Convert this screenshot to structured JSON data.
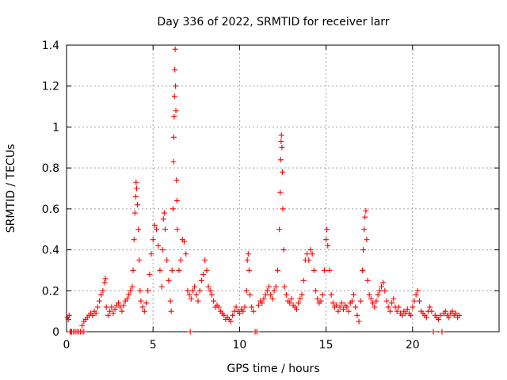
{
  "chart_data": {
    "type": "scatter",
    "title": "Day 336 of 2022, SRMTID for receiver larr",
    "xlabel": "GPS time / hours",
    "ylabel": "SRMTID / TECUs",
    "xlim": [
      0,
      25
    ],
    "ylim": [
      0,
      1.4
    ],
    "xticks": [
      0,
      5,
      10,
      15,
      20
    ],
    "xtick_labels": [
      "0",
      "5",
      "10",
      "15",
      "20"
    ],
    "yticks": [
      0,
      0.2,
      0.4,
      0.6,
      0.8,
      1.0,
      1.2,
      1.4
    ],
    "ytick_labels": [
      "0",
      "0.2",
      "0.4",
      "0.6",
      "0.8",
      "1",
      "1.2",
      "1.4"
    ],
    "grid": true,
    "marker": "plus",
    "color": "#ff0000",
    "series": [
      {
        "name": "SRMTID",
        "points": [
          [
            0.05,
            0.07
          ],
          [
            0.1,
            0.06
          ],
          [
            0.15,
            0.08
          ],
          [
            0.2,
            0.0
          ],
          [
            0.25,
            0.0
          ],
          [
            0.3,
            0.0
          ],
          [
            0.4,
            0.0
          ],
          [
            0.5,
            0.0
          ],
          [
            0.6,
            0.0
          ],
          [
            0.7,
            0.0
          ],
          [
            0.8,
            0.0
          ],
          [
            0.9,
            0.0
          ],
          [
            1.0,
            0.0
          ],
          [
            0.9,
            0.03
          ],
          [
            1.0,
            0.05
          ],
          [
            1.1,
            0.06
          ],
          [
            1.2,
            0.07
          ],
          [
            1.3,
            0.08
          ],
          [
            1.4,
            0.09
          ],
          [
            1.5,
            0.08
          ],
          [
            1.6,
            0.1
          ],
          [
            1.7,
            0.09
          ],
          [
            1.8,
            0.12
          ],
          [
            1.9,
            0.15
          ],
          [
            2.0,
            0.18
          ],
          [
            2.1,
            0.2
          ],
          [
            2.2,
            0.24
          ],
          [
            2.25,
            0.26
          ],
          [
            2.3,
            0.12
          ],
          [
            2.4,
            0.08
          ],
          [
            2.5,
            0.1
          ],
          [
            2.6,
            0.12
          ],
          [
            2.7,
            0.09
          ],
          [
            2.8,
            0.11
          ],
          [
            2.9,
            0.13
          ],
          [
            3.0,
            0.14
          ],
          [
            3.1,
            0.12
          ],
          [
            3.2,
            0.1
          ],
          [
            3.3,
            0.13
          ],
          [
            3.4,
            0.15
          ],
          [
            3.5,
            0.16
          ],
          [
            3.6,
            0.18
          ],
          [
            3.7,
            0.2
          ],
          [
            3.8,
            0.22
          ],
          [
            3.85,
            0.3
          ],
          [
            3.9,
            0.45
          ],
          [
            3.95,
            0.58
          ],
          [
            4.0,
            0.66
          ],
          [
            4.02,
            0.73
          ],
          [
            4.05,
            0.7
          ],
          [
            4.1,
            0.62
          ],
          [
            4.15,
            0.5
          ],
          [
            4.2,
            0.35
          ],
          [
            4.25,
            0.2
          ],
          [
            4.3,
            0.15
          ],
          [
            4.4,
            0.12
          ],
          [
            4.5,
            0.1
          ],
          [
            4.6,
            0.14
          ],
          [
            4.7,
            0.2
          ],
          [
            4.8,
            0.28
          ],
          [
            4.9,
            0.38
          ],
          [
            5.0,
            0.45
          ],
          [
            5.1,
            0.52
          ],
          [
            5.2,
            0.5
          ],
          [
            5.3,
            0.42
          ],
          [
            5.4,
            0.3
          ],
          [
            5.5,
            0.22
          ],
          [
            5.55,
            0.4
          ],
          [
            5.6,
            0.55
          ],
          [
            5.65,
            0.58
          ],
          [
            5.7,
            0.5
          ],
          [
            5.8,
            0.35
          ],
          [
            5.9,
            0.25
          ],
          [
            6.0,
            0.15
          ],
          [
            6.05,
            0.1
          ],
          [
            6.1,
            0.3
          ],
          [
            6.15,
            0.6
          ],
          [
            6.18,
            0.83
          ],
          [
            6.2,
            0.95
          ],
          [
            6.22,
            1.05
          ],
          [
            6.24,
            1.15
          ],
          [
            6.26,
            1.28
          ],
          [
            6.28,
            1.38
          ],
          [
            6.3,
            1.2
          ],
          [
            6.32,
            1.08
          ],
          [
            6.35,
            0.74
          ],
          [
            6.38,
            0.64
          ],
          [
            6.4,
            0.5
          ],
          [
            6.5,
            0.3
          ],
          [
            6.6,
            0.35
          ],
          [
            6.7,
            0.45
          ],
          [
            6.8,
            0.44
          ],
          [
            6.9,
            0.38
          ],
          [
            7.0,
            0.2
          ],
          [
            7.1,
            0.18
          ],
          [
            7.15,
            0.0
          ],
          [
            7.2,
            0.16
          ],
          [
            7.3,
            0.2
          ],
          [
            7.4,
            0.22
          ],
          [
            7.5,
            0.18
          ],
          [
            7.6,
            0.15
          ],
          [
            7.7,
            0.2
          ],
          [
            7.8,
            0.25
          ],
          [
            7.9,
            0.28
          ],
          [
            8.0,
            0.35
          ],
          [
            8.1,
            0.3
          ],
          [
            8.2,
            0.22
          ],
          [
            8.3,
            0.2
          ],
          [
            8.4,
            0.18
          ],
          [
            8.5,
            0.15
          ],
          [
            8.6,
            0.12
          ],
          [
            8.7,
            0.13
          ],
          [
            8.8,
            0.12
          ],
          [
            8.9,
            0.1
          ],
          [
            9.0,
            0.09
          ],
          [
            9.1,
            0.08
          ],
          [
            9.2,
            0.06
          ],
          [
            9.3,
            0.07
          ],
          [
            9.4,
            0.06
          ],
          [
            9.5,
            0.05
          ],
          [
            9.6,
            0.08
          ],
          [
            9.7,
            0.1
          ],
          [
            9.8,
            0.12
          ],
          [
            9.9,
            0.1
          ],
          [
            10.0,
            0.09
          ],
          [
            10.1,
            0.11
          ],
          [
            10.2,
            0.1
          ],
          [
            10.3,
            0.12
          ],
          [
            10.4,
            0.2
          ],
          [
            10.45,
            0.35
          ],
          [
            10.5,
            0.38
          ],
          [
            10.55,
            0.3
          ],
          [
            10.6,
            0.18
          ],
          [
            10.7,
            0.12
          ],
          [
            10.8,
            0.1
          ],
          [
            10.9,
            0.0
          ],
          [
            11.0,
            0.0
          ],
          [
            11.1,
            0.13
          ],
          [
            11.2,
            0.15
          ],
          [
            11.3,
            0.14
          ],
          [
            11.4,
            0.16
          ],
          [
            11.5,
            0.18
          ],
          [
            11.6,
            0.2
          ],
          [
            11.7,
            0.22
          ],
          [
            11.8,
            0.18
          ],
          [
            11.9,
            0.16
          ],
          [
            12.0,
            0.2
          ],
          [
            12.1,
            0.22
          ],
          [
            12.2,
            0.3
          ],
          [
            12.3,
            0.5
          ],
          [
            12.35,
            0.68
          ],
          [
            12.38,
            0.84
          ],
          [
            12.4,
            0.93
          ],
          [
            12.42,
            0.96
          ],
          [
            12.45,
            0.9
          ],
          [
            12.48,
            0.78
          ],
          [
            12.5,
            0.6
          ],
          [
            12.55,
            0.4
          ],
          [
            12.6,
            0.22
          ],
          [
            12.7,
            0.18
          ],
          [
            12.8,
            0.15
          ],
          [
            12.9,
            0.14
          ],
          [
            13.0,
            0.16
          ],
          [
            13.1,
            0.13
          ],
          [
            13.2,
            0.12
          ],
          [
            13.3,
            0.11
          ],
          [
            13.4,
            0.14
          ],
          [
            13.5,
            0.16
          ],
          [
            13.6,
            0.18
          ],
          [
            13.7,
            0.25
          ],
          [
            13.8,
            0.35
          ],
          [
            13.9,
            0.38
          ],
          [
            14.0,
            0.35
          ],
          [
            14.1,
            0.4
          ],
          [
            14.2,
            0.38
          ],
          [
            14.3,
            0.3
          ],
          [
            14.4,
            0.2
          ],
          [
            14.5,
            0.16
          ],
          [
            14.6,
            0.14
          ],
          [
            14.7,
            0.15
          ],
          [
            14.8,
            0.18
          ],
          [
            14.9,
            0.3
          ],
          [
            15.0,
            0.45
          ],
          [
            15.05,
            0.5
          ],
          [
            15.1,
            0.42
          ],
          [
            15.2,
            0.3
          ],
          [
            15.3,
            0.18
          ],
          [
            15.4,
            0.14
          ],
          [
            15.5,
            0.12
          ],
          [
            15.6,
            0.13
          ],
          [
            15.7,
            0.1
          ],
          [
            15.8,
            0.12
          ],
          [
            15.9,
            0.14
          ],
          [
            16.0,
            0.11
          ],
          [
            16.1,
            0.13
          ],
          [
            16.2,
            0.12
          ],
          [
            16.3,
            0.1
          ],
          [
            16.4,
            0.14
          ],
          [
            16.5,
            0.15
          ],
          [
            16.6,
            0.18
          ],
          [
            16.7,
            0.12
          ],
          [
            16.8,
            0.08
          ],
          [
            16.9,
            0.05
          ],
          [
            17.0,
            0.15
          ],
          [
            17.1,
            0.3
          ],
          [
            17.15,
            0.4
          ],
          [
            17.2,
            0.5
          ],
          [
            17.25,
            0.56
          ],
          [
            17.3,
            0.59
          ],
          [
            17.35,
            0.45
          ],
          [
            17.4,
            0.25
          ],
          [
            17.5,
            0.18
          ],
          [
            17.6,
            0.16
          ],
          [
            17.7,
            0.14
          ],
          [
            17.8,
            0.12
          ],
          [
            17.9,
            0.15
          ],
          [
            18.0,
            0.18
          ],
          [
            18.1,
            0.2
          ],
          [
            18.2,
            0.22
          ],
          [
            18.3,
            0.24
          ],
          [
            18.4,
            0.2
          ],
          [
            18.5,
            0.15
          ],
          [
            18.6,
            0.12
          ],
          [
            18.7,
            0.1
          ],
          [
            18.8,
            0.14
          ],
          [
            18.9,
            0.16
          ],
          [
            19.0,
            0.12
          ],
          [
            19.1,
            0.1
          ],
          [
            19.2,
            0.12
          ],
          [
            19.3,
            0.09
          ],
          [
            19.4,
            0.08
          ],
          [
            19.5,
            0.1
          ],
          [
            19.6,
            0.09
          ],
          [
            19.7,
            0.11
          ],
          [
            19.8,
            0.09
          ],
          [
            19.9,
            0.08
          ],
          [
            20.0,
            0.12
          ],
          [
            20.1,
            0.15
          ],
          [
            20.2,
            0.18
          ],
          [
            20.3,
            0.2
          ],
          [
            20.4,
            0.15
          ],
          [
            20.5,
            0.1
          ],
          [
            20.6,
            0.09
          ],
          [
            20.7,
            0.08
          ],
          [
            20.8,
            0.07
          ],
          [
            20.9,
            0.1
          ],
          [
            21.0,
            0.12
          ],
          [
            21.1,
            0.1
          ],
          [
            21.2,
            0.0
          ],
          [
            21.3,
            0.08
          ],
          [
            21.4,
            0.07
          ],
          [
            21.5,
            0.06
          ],
          [
            21.6,
            0.08
          ],
          [
            21.7,
            0.0
          ],
          [
            21.8,
            0.09
          ],
          [
            21.9,
            0.1
          ],
          [
            22.0,
            0.08
          ],
          [
            22.1,
            0.07
          ],
          [
            22.2,
            0.09
          ],
          [
            22.3,
            0.1
          ],
          [
            22.4,
            0.08
          ],
          [
            22.5,
            0.09
          ],
          [
            22.6,
            0.07
          ],
          [
            22.7,
            0.08
          ]
        ]
      }
    ]
  }
}
